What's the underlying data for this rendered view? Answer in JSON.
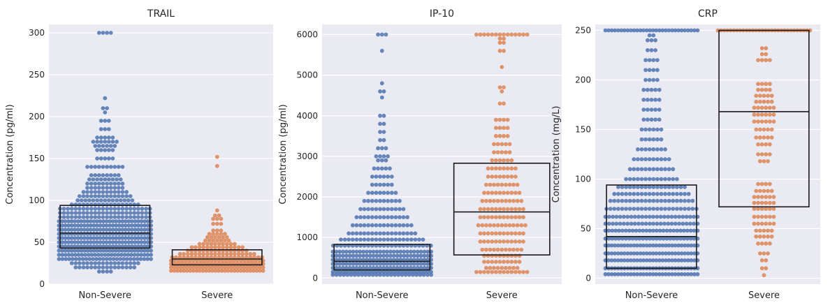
{
  "chart_data": [
    {
      "type": "swarm+box",
      "title": "TRAIL",
      "ylabel": "Concentration (pg/ml)",
      "categories": [
        "Non-Severe",
        "Severe"
      ],
      "ylim": [
        0,
        310
      ],
      "yticks": [
        0,
        50,
        100,
        150,
        200,
        250,
        300
      ],
      "grid": true,
      "series": [
        {
          "category": "Non-Severe",
          "color": "#4c72b0",
          "box": {
            "q1": 43,
            "median": 61,
            "q3": 94
          },
          "bins": [
            [
              300,
              4
            ],
            [
              222,
              1
            ],
            [
              210,
              2
            ],
            [
              205,
              1
            ],
            [
              195,
              3
            ],
            [
              185,
              3
            ],
            [
              175,
              5
            ],
            [
              170,
              7
            ],
            [
              165,
              6
            ],
            [
              160,
              5
            ],
            [
              150,
              5
            ],
            [
              140,
              10
            ],
            [
              130,
              8
            ],
            [
              125,
              9
            ],
            [
              120,
              10
            ],
            [
              115,
              10
            ],
            [
              110,
              12
            ],
            [
              105,
              14
            ],
            [
              100,
              15
            ],
            [
              95,
              18
            ],
            [
              90,
              24
            ],
            [
              85,
              24
            ],
            [
              80,
              24
            ],
            [
              75,
              30
            ],
            [
              70,
              30
            ],
            [
              65,
              30
            ],
            [
              60,
              30
            ],
            [
              55,
              30
            ],
            [
              50,
              30
            ],
            [
              45,
              30
            ],
            [
              40,
              30
            ],
            [
              35,
              29
            ],
            [
              30,
              28
            ],
            [
              25,
              18
            ],
            [
              20,
              16
            ],
            [
              15,
              4
            ]
          ]
        },
        {
          "category": "Severe",
          "color": "#dd8452",
          "box": {
            "q1": 23,
            "median": 30,
            "q3": 41
          },
          "bins": [
            [
              152,
              1
            ],
            [
              141,
              1
            ],
            [
              88,
              1
            ],
            [
              82,
              2
            ],
            [
              78,
              3
            ],
            [
              72,
              3
            ],
            [
              64,
              3
            ],
            [
              60,
              5
            ],
            [
              56,
              6
            ],
            [
              52,
              7
            ],
            [
              48,
              10
            ],
            [
              44,
              14
            ],
            [
              40,
              16
            ],
            [
              36,
              20
            ],
            [
              32,
              24
            ],
            [
              28,
              26
            ],
            [
              24,
              30
            ],
            [
              20,
              30
            ],
            [
              16,
              30
            ]
          ]
        }
      ]
    },
    {
      "type": "swarm+box",
      "title": "IP-10",
      "ylabel": "Concentration (pg/ml)",
      "categories": [
        "Non-Severe",
        "Severe"
      ],
      "ylim": [
        -150,
        6250
      ],
      "yticks": [
        0,
        1000,
        2000,
        3000,
        4000,
        5000,
        6000
      ],
      "grid": true,
      "series": [
        {
          "category": "Non-Severe",
          "color": "#4c72b0",
          "box": {
            "q1": 200,
            "median": 410,
            "q3": 830
          },
          "bins": [
            [
              6000,
              3
            ],
            [
              5600,
              1
            ],
            [
              4800,
              1
            ],
            [
              4600,
              2
            ],
            [
              4450,
              1
            ],
            [
              4000,
              2
            ],
            [
              3800,
              2
            ],
            [
              3600,
              2
            ],
            [
              3400,
              2
            ],
            [
              3200,
              3
            ],
            [
              3000,
              4
            ],
            [
              2900,
              3
            ],
            [
              2700,
              5
            ],
            [
              2500,
              6
            ],
            [
              2300,
              6
            ],
            [
              2100,
              8
            ],
            [
              1900,
              10
            ],
            [
              1700,
              12
            ],
            [
              1500,
              14
            ],
            [
              1300,
              16
            ],
            [
              1100,
              18
            ],
            [
              950,
              22
            ],
            [
              800,
              26
            ],
            [
              650,
              30
            ],
            [
              550,
              30
            ],
            [
              450,
              30
            ],
            [
              350,
              30
            ],
            [
              250,
              30
            ],
            [
              150,
              30
            ],
            [
              80,
              28
            ]
          ]
        },
        {
          "category": "Severe",
          "color": "#dd8452",
          "box": {
            "q1": 570,
            "median": 1630,
            "q3": 2830
          },
          "bins": [
            [
              6000,
              14
            ],
            [
              5900,
              2
            ],
            [
              5800,
              2
            ],
            [
              5600,
              2
            ],
            [
              5200,
              1
            ],
            [
              4700,
              2
            ],
            [
              4600,
              1
            ],
            [
              4300,
              2
            ],
            [
              3900,
              4
            ],
            [
              3700,
              4
            ],
            [
              3500,
              4
            ],
            [
              3300,
              5
            ],
            [
              3100,
              5
            ],
            [
              2900,
              6
            ],
            [
              2700,
              8
            ],
            [
              2500,
              8
            ],
            [
              2300,
              9
            ],
            [
              2100,
              10
            ],
            [
              1900,
              11
            ],
            [
              1700,
              12
            ],
            [
              1500,
              12
            ],
            [
              1300,
              13
            ],
            [
              1100,
              12
            ],
            [
              900,
              12
            ],
            [
              700,
              11
            ],
            [
              550,
              10
            ],
            [
              400,
              10
            ],
            [
              250,
              9
            ],
            [
              150,
              14
            ]
          ]
        }
      ]
    },
    {
      "type": "swarm+box",
      "title": "CRP",
      "ylabel": "Concentration (mg/L)",
      "categories": [
        "Non-Severe",
        "Severe"
      ],
      "ylim": [
        -6,
        256
      ],
      "yticks": [
        0,
        50,
        100,
        150,
        200,
        250
      ],
      "grid": true,
      "series": [
        {
          "category": "Non-Severe",
          "color": "#4c72b0",
          "box": {
            "q1": 10,
            "median": 42,
            "q3": 94
          },
          "bins": [
            [
              250,
              30
            ],
            [
              245,
              2
            ],
            [
              240,
              3
            ],
            [
              230,
              3
            ],
            [
              220,
              4
            ],
            [
              210,
              4
            ],
            [
              200,
              4
            ],
            [
              190,
              5
            ],
            [
              180,
              5
            ],
            [
              170,
              5
            ],
            [
              160,
              5
            ],
            [
              150,
              6
            ],
            [
              140,
              6
            ],
            [
              130,
              8
            ],
            [
              120,
              10
            ],
            [
              110,
              12
            ],
            [
              100,
              14
            ],
            [
              92,
              18
            ],
            [
              85,
              20
            ],
            [
              78,
              22
            ],
            [
              70,
              24
            ],
            [
              62,
              26
            ],
            [
              55,
              26
            ],
            [
              48,
              28
            ],
            [
              40,
              28
            ],
            [
              33,
              30
            ],
            [
              25,
              30
            ],
            [
              18,
              30
            ],
            [
              10,
              30
            ],
            [
              4,
              30
            ]
          ]
        },
        {
          "category": "Severe",
          "color": "#dd8452",
          "box": {
            "q1": 72,
            "median": 168,
            "q3": 250
          },
          "bins": [
            [
              250,
              30
            ],
            [
              232,
              2
            ],
            [
              226,
              2
            ],
            [
              220,
              4
            ],
            [
              196,
              4
            ],
            [
              190,
              4
            ],
            [
              184,
              5
            ],
            [
              178,
              5
            ],
            [
              172,
              6
            ],
            [
              165,
              6
            ],
            [
              158,
              6
            ],
            [
              150,
              5
            ],
            [
              142,
              5
            ],
            [
              135,
              4
            ],
            [
              125,
              4
            ],
            [
              118,
              3
            ],
            [
              95,
              4
            ],
            [
              88,
              5
            ],
            [
              82,
              6
            ],
            [
              76,
              6
            ],
            [
              70,
              6
            ],
            [
              62,
              6
            ],
            [
              55,
              6
            ],
            [
              48,
              5
            ],
            [
              42,
              5
            ],
            [
              35,
              4
            ],
            [
              25,
              3
            ],
            [
              18,
              2
            ],
            [
              10,
              2
            ],
            [
              3,
              1
            ]
          ]
        }
      ]
    }
  ]
}
